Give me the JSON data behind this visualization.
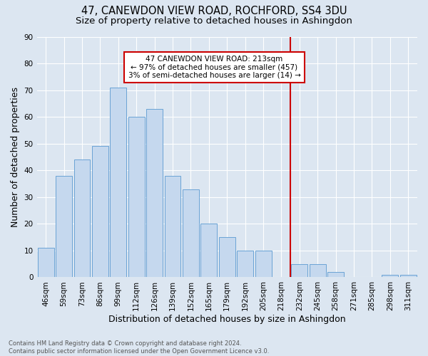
{
  "title": "47, CANEWDON VIEW ROAD, ROCHFORD, SS4 3DU",
  "subtitle": "Size of property relative to detached houses in Ashingdon",
  "xlabel": "Distribution of detached houses by size in Ashingdon",
  "ylabel": "Number of detached properties",
  "footer": "Contains HM Land Registry data © Crown copyright and database right 2024.\nContains public sector information licensed under the Open Government Licence v3.0.",
  "bar_labels": [
    "46sqm",
    "59sqm",
    "73sqm",
    "86sqm",
    "99sqm",
    "112sqm",
    "126sqm",
    "139sqm",
    "152sqm",
    "165sqm",
    "179sqm",
    "192sqm",
    "205sqm",
    "218sqm",
    "232sqm",
    "245sqm",
    "258sqm",
    "271sqm",
    "285sqm",
    "298sqm",
    "311sqm"
  ],
  "bar_values": [
    11,
    38,
    44,
    49,
    71,
    60,
    63,
    38,
    33,
    20,
    15,
    10,
    10,
    0,
    5,
    5,
    2,
    0,
    0,
    1,
    1
  ],
  "bar_color": "#c5d8ee",
  "bar_edge_color": "#6aa3d5",
  "background_color": "#dce6f1",
  "vline_x": 13.5,
  "vline_color": "#cc0000",
  "annotation_text": "47 CANEWDON VIEW ROAD: 213sqm\n← 97% of detached houses are smaller (457)\n3% of semi-detached houses are larger (14) →",
  "annotation_box_color": "#cc0000",
  "ylim": [
    0,
    90
  ],
  "yticks": [
    0,
    10,
    20,
    30,
    40,
    50,
    60,
    70,
    80,
    90
  ],
  "grid_color": "#ffffff",
  "title_fontsize": 10.5,
  "subtitle_fontsize": 9.5,
  "tick_fontsize": 7.5,
  "ylabel_fontsize": 9,
  "xlabel_fontsize": 9,
  "annotation_fontsize": 7.5,
  "footer_fontsize": 6
}
